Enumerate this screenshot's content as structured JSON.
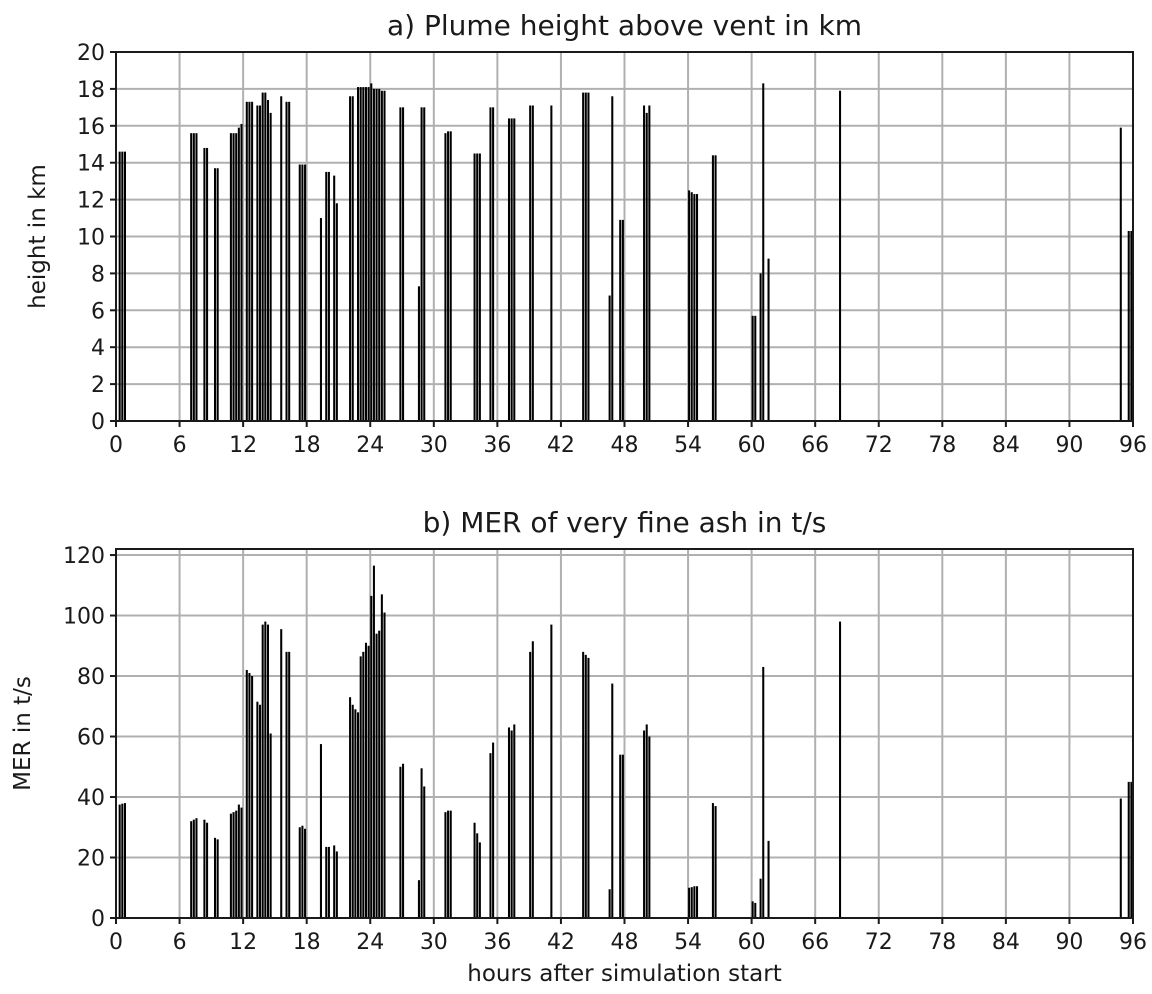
{
  "chart_data": [
    {
      "type": "bar",
      "title": "a) Plume height above vent in km",
      "xlabel": "",
      "ylabel": "height in km",
      "xlim": [
        0,
        96
      ],
      "ylim": [
        0,
        20
      ],
      "xticks": [
        0,
        6,
        12,
        18,
        24,
        30,
        36,
        42,
        48,
        54,
        60,
        66,
        72,
        78,
        84,
        90,
        96
      ],
      "yticks": [
        0,
        2,
        4,
        6,
        8,
        10,
        12,
        14,
        16,
        18,
        20
      ],
      "grid": true,
      "bar_width_hours": 0.25,
      "x": [
        0.25,
        0.5,
        0.75,
        7.0,
        7.25,
        7.5,
        8.25,
        8.5,
        9.25,
        9.5,
        10.75,
        11.0,
        11.25,
        11.5,
        11.75,
        12.25,
        12.5,
        12.75,
        13.25,
        13.5,
        13.75,
        14.0,
        14.25,
        14.5,
        15.5,
        16.0,
        16.25,
        17.25,
        17.5,
        17.75,
        19.25,
        19.75,
        20.0,
        20.5,
        20.75,
        22.0,
        22.25,
        22.75,
        23.0,
        23.25,
        23.5,
        23.75,
        24.0,
        24.25,
        24.5,
        24.75,
        25.0,
        25.25,
        26.75,
        27.0,
        28.5,
        28.75,
        29.0,
        31.0,
        31.25,
        31.5,
        33.75,
        34.0,
        34.25,
        35.25,
        35.5,
        37.0,
        37.25,
        37.5,
        39.0,
        39.25,
        41.0,
        44.0,
        44.25,
        44.5,
        46.5,
        46.75,
        47.5,
        47.75,
        49.75,
        50.0,
        50.25,
        54.0,
        54.25,
        54.5,
        54.75,
        56.25,
        56.5,
        60.0,
        60.25,
        60.75,
        61.0,
        61.5,
        68.25,
        94.75,
        95.5,
        95.75
      ],
      "values": [
        14.6,
        14.6,
        14.6,
        15.6,
        15.6,
        15.6,
        14.8,
        14.8,
        13.7,
        13.7,
        15.6,
        15.6,
        15.6,
        15.9,
        16.1,
        17.3,
        17.3,
        17.3,
        17.1,
        17.1,
        17.8,
        17.8,
        17.4,
        16.7,
        17.6,
        17.3,
        17.3,
        13.9,
        13.9,
        13.9,
        11.0,
        13.5,
        13.5,
        13.3,
        11.8,
        17.6,
        17.6,
        18.1,
        18.1,
        18.1,
        18.1,
        18.1,
        18.3,
        18.0,
        18.0,
        18.0,
        17.9,
        17.9,
        17.0,
        17.0,
        7.3,
        17.0,
        17.0,
        15.6,
        15.7,
        15.7,
        14.5,
        14.5,
        14.5,
        17.0,
        17.0,
        16.4,
        16.4,
        16.4,
        17.1,
        17.1,
        17.1,
        17.8,
        17.8,
        17.8,
        6.8,
        17.6,
        10.9,
        10.9,
        17.1,
        16.7,
        17.1,
        12.5,
        12.4,
        12.3,
        12.3,
        14.4,
        14.4,
        5.7,
        5.7,
        8.0,
        18.3,
        8.8,
        17.9,
        15.9,
        10.3,
        10.3
      ]
    },
    {
      "type": "bar",
      "title": "b) MER of very fine ash in t/s",
      "xlabel": "hours after simulation start",
      "ylabel": "MER in t/s",
      "xlim": [
        0,
        96
      ],
      "ylim": [
        0,
        122
      ],
      "xticks": [
        0,
        6,
        12,
        18,
        24,
        30,
        36,
        42,
        48,
        54,
        60,
        66,
        72,
        78,
        84,
        90,
        96
      ],
      "yticks": [
        0,
        20,
        40,
        60,
        80,
        100,
        120
      ],
      "grid": true,
      "bar_width_hours": 0.25,
      "x": [
        0.25,
        0.5,
        0.75,
        7.0,
        7.25,
        7.5,
        8.25,
        8.5,
        9.25,
        9.5,
        10.75,
        11.0,
        11.25,
        11.5,
        11.75,
        12.25,
        12.5,
        12.75,
        13.25,
        13.5,
        13.75,
        14.0,
        14.25,
        14.5,
        15.5,
        16.0,
        16.25,
        17.25,
        17.5,
        17.75,
        19.25,
        19.75,
        20.0,
        20.5,
        20.75,
        22.0,
        22.25,
        22.5,
        22.75,
        23.0,
        23.25,
        23.5,
        23.75,
        24.0,
        24.25,
        24.5,
        24.75,
        25.0,
        25.25,
        26.75,
        27.0,
        28.5,
        28.75,
        29.0,
        31.0,
        31.25,
        31.5,
        33.75,
        34.0,
        34.25,
        35.25,
        35.5,
        37.0,
        37.25,
        37.5,
        39.0,
        39.25,
        41.0,
        44.0,
        44.25,
        44.5,
        46.5,
        46.75,
        47.5,
        47.75,
        49.75,
        50.0,
        50.25,
        54.0,
        54.25,
        54.5,
        54.75,
        56.25,
        56.5,
        60.0,
        60.25,
        60.75,
        61.0,
        61.5,
        68.25,
        94.75,
        95.5,
        95.75
      ],
      "values": [
        37.5,
        37.8,
        38.0,
        32.0,
        32.5,
        33.0,
        32.5,
        31.5,
        26.5,
        26.0,
        34.5,
        35.0,
        35.5,
        37.5,
        36.5,
        82.0,
        81.0,
        80.0,
        71.5,
        70.5,
        97.0,
        98.0,
        97.0,
        61.0,
        95.5,
        88.0,
        88.0,
        30.0,
        30.5,
        29.5,
        57.5,
        23.5,
        23.5,
        24.0,
        22.0,
        73.0,
        70.5,
        69.0,
        68.0,
        86.5,
        88.0,
        91.0,
        90.0,
        106.5,
        116.5,
        94.0,
        95.0,
        107.0,
        101.0,
        50.0,
        51.0,
        12.5,
        49.5,
        43.5,
        35.0,
        35.5,
        35.5,
        31.5,
        28.0,
        25.0,
        54.5,
        58.0,
        63.0,
        62.0,
        64.0,
        88.0,
        91.5,
        97.0,
        88.0,
        87.0,
        86.0,
        9.5,
        77.5,
        54.0,
        54.0,
        62.0,
        64.0,
        60.0,
        10.0,
        10.2,
        10.5,
        10.5,
        38.0,
        37.0,
        5.5,
        5.0,
        13.0,
        83.0,
        25.5,
        98.0,
        39.5,
        45.0,
        45.0
      ]
    }
  ]
}
